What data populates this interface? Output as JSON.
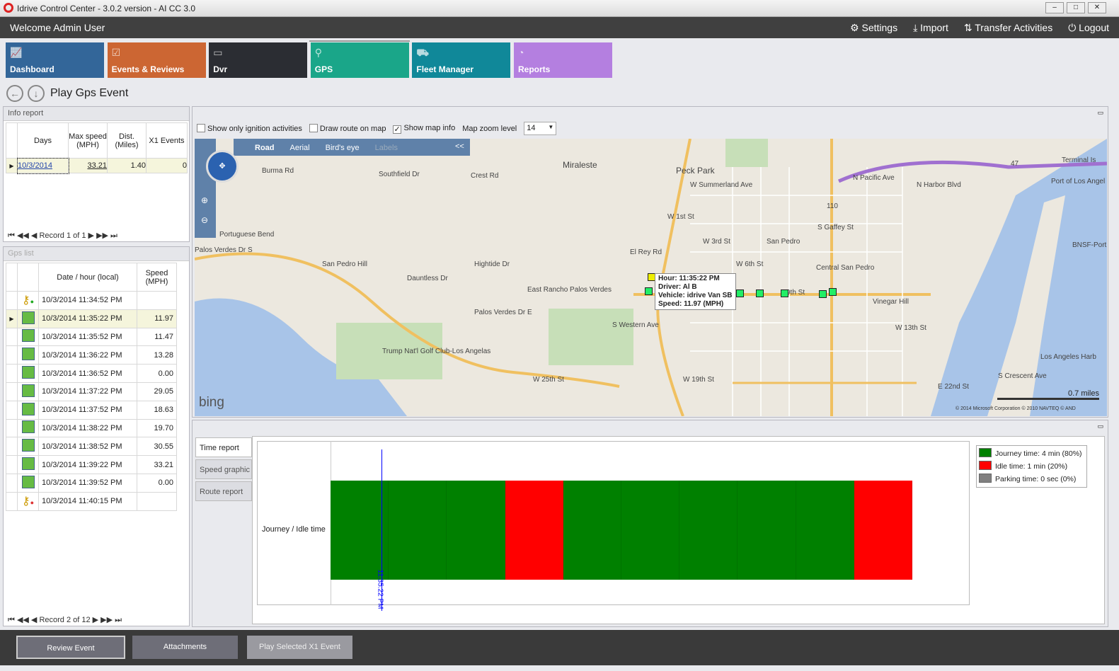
{
  "window": {
    "title": "Idrive Control Center - 3.0.2 version - AI CC 3.0",
    "controls": [
      "–",
      "□",
      "✕"
    ]
  },
  "header": {
    "welcome": "Welcome Admin User",
    "actions": [
      {
        "label": "Settings",
        "icon": "gear-icon"
      },
      {
        "label": "Import",
        "icon": "download-icon"
      },
      {
        "label": "Transfer Activities",
        "icon": "transfer-icon"
      },
      {
        "label": "Logout",
        "icon": "power-icon"
      }
    ]
  },
  "tiles": [
    {
      "label": "Dashboard",
      "color": "#336699",
      "icon": "chart-icon"
    },
    {
      "label": "Events & Reviews",
      "color": "#cc6633",
      "icon": "clipboard-icon"
    },
    {
      "label": "Dvr",
      "color": "#2b2d33",
      "icon": "dvr-icon"
    },
    {
      "label": "GPS",
      "color": "#1aa689",
      "icon": "pin-icon",
      "active": true
    },
    {
      "label": "Fleet Manager",
      "color": "#108899",
      "icon": "trucks-icon"
    },
    {
      "label": "Reports",
      "color": "#b47fe0",
      "icon": "pie-icon"
    }
  ],
  "page": {
    "title": "Play Gps Event"
  },
  "info_report": {
    "title": "Info report",
    "columns": [
      "Days",
      "Max speed (MPH)",
      "Dist. (Miles)",
      "X1 Events"
    ],
    "rows": [
      [
        "10/3/2014",
        "33.21",
        "1.40",
        "0"
      ]
    ],
    "record": "Record 1 of 1"
  },
  "gps_list": {
    "title": "Gps list",
    "columns": [
      "Date / hour (local)",
      "Speed (MPH)"
    ],
    "rows": [
      {
        "time": "10/3/2014 11:34:52 PM",
        "speed": "",
        "icon": "key-on-icon"
      },
      {
        "time": "10/3/2014 11:35:22 PM",
        "speed": "11.97",
        "icon": "map-point-icon",
        "selected": true
      },
      {
        "time": "10/3/2014 11:35:52 PM",
        "speed": "11.47",
        "icon": "map-point-icon"
      },
      {
        "time": "10/3/2014 11:36:22 PM",
        "speed": "13.28",
        "icon": "map-point-icon"
      },
      {
        "time": "10/3/2014 11:36:52 PM",
        "speed": "0.00",
        "icon": "map-point-icon"
      },
      {
        "time": "10/3/2014 11:37:22 PM",
        "speed": "29.05",
        "icon": "map-point-icon"
      },
      {
        "time": "10/3/2014 11:37:52 PM",
        "speed": "18.63",
        "icon": "map-point-icon"
      },
      {
        "time": "10/3/2014 11:38:22 PM",
        "speed": "19.70",
        "icon": "map-point-icon"
      },
      {
        "time": "10/3/2014 11:38:52 PM",
        "speed": "30.55",
        "icon": "map-point-icon"
      },
      {
        "time": "10/3/2014 11:39:22 PM",
        "speed": "33.21",
        "icon": "map-point-icon"
      },
      {
        "time": "10/3/2014 11:39:52 PM",
        "speed": "0.00",
        "icon": "map-point-icon"
      },
      {
        "time": "10/3/2014 11:40:15 PM",
        "speed": "",
        "icon": "key-off-icon"
      }
    ],
    "record": "Record 2 of 12"
  },
  "map_options": {
    "ignition_only": "Show only ignition activities",
    "draw_route": "Draw route on map",
    "show_info": "Show map info",
    "zoom_label": "Map zoom level",
    "zoom_value": "14",
    "ignition_checked": false,
    "route_checked": false,
    "info_checked": true
  },
  "map": {
    "modes": [
      "Road",
      "Aerial",
      "Bird's eye",
      "Labels"
    ],
    "collapse": "<<",
    "brand": "bing",
    "scale": "0.7 miles",
    "copyright": "© 2014 Microsoft Corporation   © 2010 NAVTEQ   © AND",
    "labels": [
      "Miraleste",
      "Peck Park",
      "W Summerland Ave",
      "Crest Rd",
      "Burma Rd",
      "Southfield Dr",
      "Portuguese Bend",
      "Palos Verdes Dr S",
      "San Pedro Hill",
      "Dauntless Dr",
      "Hightide Dr",
      "East Rancho Palos Verdes",
      "W 1st St",
      "El Rey Rd",
      "W 3rd St",
      "San Pedro",
      "W 6th St",
      "Central San Pedro",
      "Vinegar Hill",
      "W 13th St",
      "S Western Ave",
      "Trump Nat'l Golf Club-Los Angelas",
      "W 25th St",
      "Palos Verdes Dr E",
      "W 19th St",
      "S Gaffey St",
      "N Pacific Ave",
      "N Harbor Blvd",
      "Port of Los Angel",
      "Terminal Is",
      "BNSF-Port",
      "Los Angeles Harb",
      "E 22nd St",
      "S Crescent Ave",
      "9th St",
      "47",
      "110"
    ],
    "tooltip": {
      "hour": "Hour: 11:35:22 PM",
      "driver": "Driver: Al B",
      "vehicle": "Vehicle: idrive Van SB",
      "speed": "Speed: 11.97 (MPH)"
    }
  },
  "report_tabs": [
    "Time report",
    "Speed graphic",
    "Route report"
  ],
  "chart_data": {
    "type": "timeline",
    "ylabel": "Journey / Idle time",
    "segments": [
      {
        "status": "journey",
        "start": "11:34:52 PM",
        "end": "11:35:22 PM"
      },
      {
        "status": "journey",
        "start": "11:35:22 PM",
        "end": "11:35:52 PM"
      },
      {
        "status": "journey",
        "start": "11:35:52 PM",
        "end": "11:36:22 PM"
      },
      {
        "status": "idle",
        "start": "11:36:22 PM",
        "end": "11:36:52 PM"
      },
      {
        "status": "journey",
        "start": "11:36:52 PM",
        "end": "11:37:22 PM"
      },
      {
        "status": "journey",
        "start": "11:37:22 PM",
        "end": "11:37:52 PM"
      },
      {
        "status": "journey",
        "start": "11:37:52 PM",
        "end": "11:38:22 PM"
      },
      {
        "status": "journey",
        "start": "11:38:22 PM",
        "end": "11:38:52 PM"
      },
      {
        "status": "journey",
        "start": "11:38:52 PM",
        "end": "11:39:22 PM"
      },
      {
        "status": "idle",
        "start": "11:39:22 PM",
        "end": "11:39:52 PM"
      }
    ],
    "cursor": "11:35:22 PM",
    "colors": {
      "journey": "#008000",
      "idle": "#ff0000",
      "parking": "#808080"
    },
    "legend": [
      "Journey time: 4 min (80%)",
      "Idle time: 1 min (20%)",
      "Parking time: 0 sec (0%)"
    ],
    "legend_position": "top-right"
  },
  "footer": {
    "review": "Review Event",
    "attachments": "Attachments",
    "play": "Play Selected X1 Event"
  }
}
